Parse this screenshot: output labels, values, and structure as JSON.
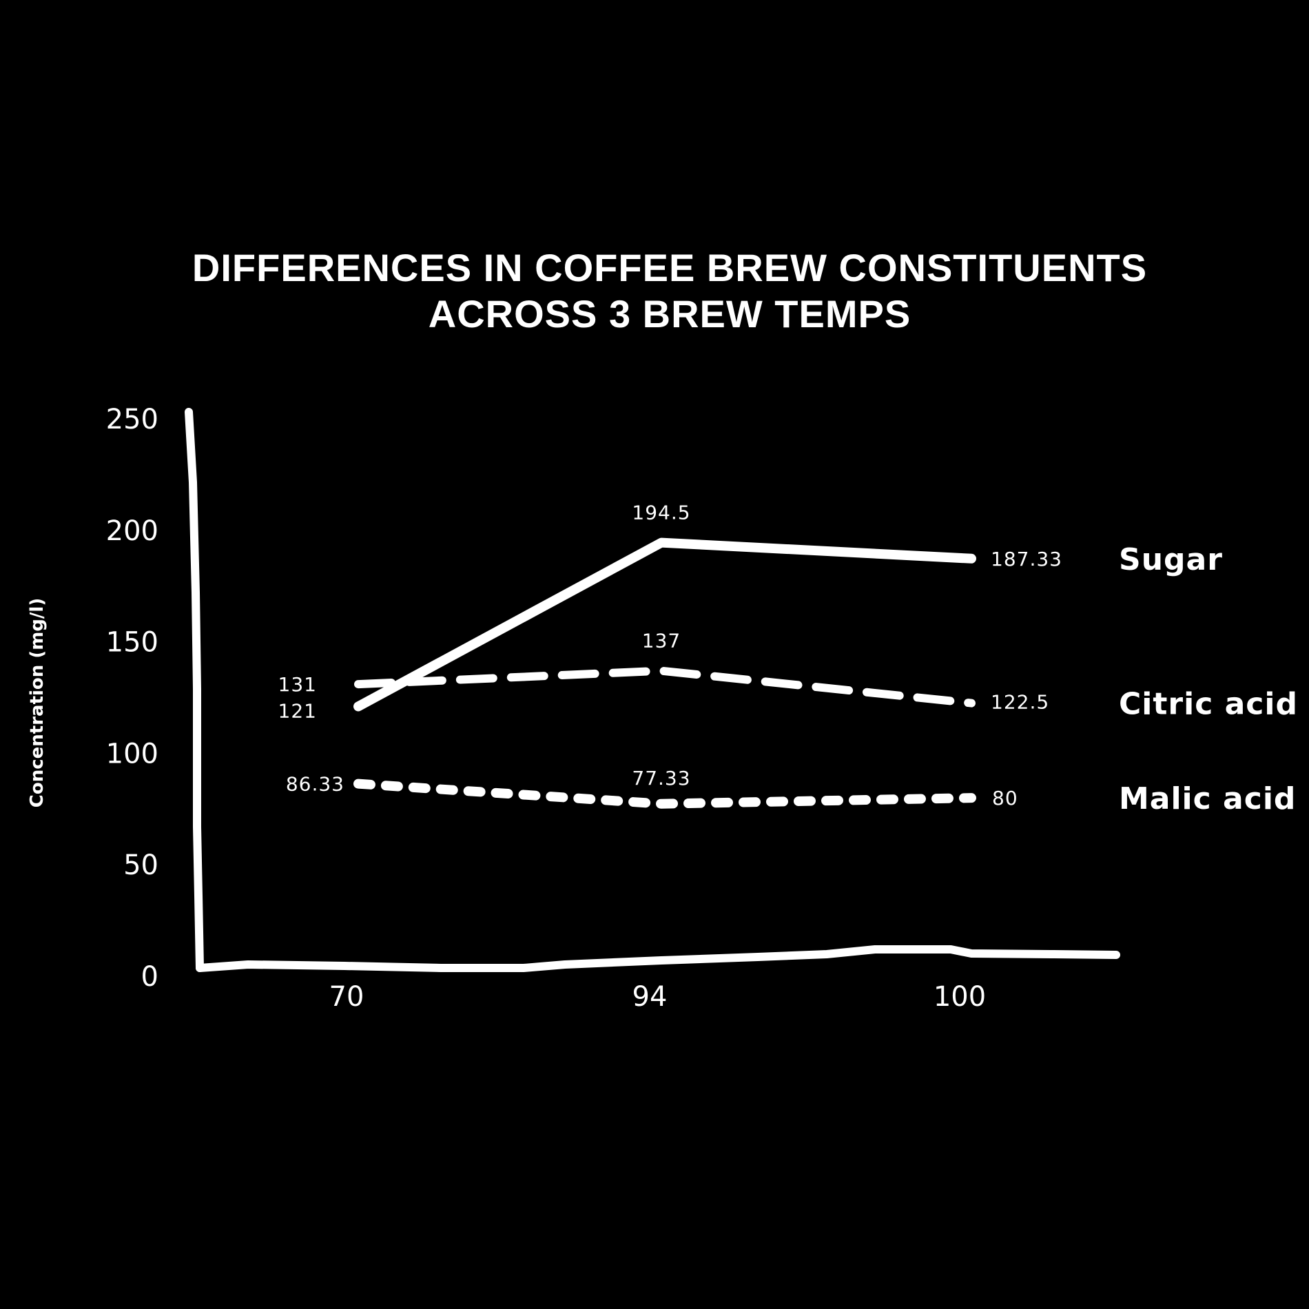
{
  "chart_data": {
    "type": "line",
    "title_lines": [
      "DIFFERENCES IN COFFEE BREW CONSTITUENTS",
      "ACROSS 3 BREW TEMPS"
    ],
    "xlabel": "",
    "ylabel": "Concentration (mg/l)",
    "categories": [
      "70",
      "94",
      "100"
    ],
    "ylim": [
      0,
      250
    ],
    "yticks": [
      "0",
      "50",
      "100",
      "150",
      "200",
      "250"
    ],
    "grid": false,
    "legend": "right, inline at line ends",
    "series": [
      {
        "name": "Sugar",
        "style": "solid",
        "values": [
          121,
          194.5,
          187.33
        ],
        "labels": [
          "121",
          "194.5",
          "187.33"
        ]
      },
      {
        "name": "Citric acid",
        "style": "dashed",
        "values": [
          131,
          137,
          122.5
        ],
        "labels": [
          "131",
          "137",
          "122.5"
        ]
      },
      {
        "name": "Malic acid",
        "style": "dotted",
        "values": [
          86.33,
          77.33,
          80
        ],
        "labels": [
          "86.33",
          "77.33",
          "80"
        ]
      }
    ],
    "colors": {
      "background": "#000000",
      "foreground": "#ffffff"
    }
  }
}
